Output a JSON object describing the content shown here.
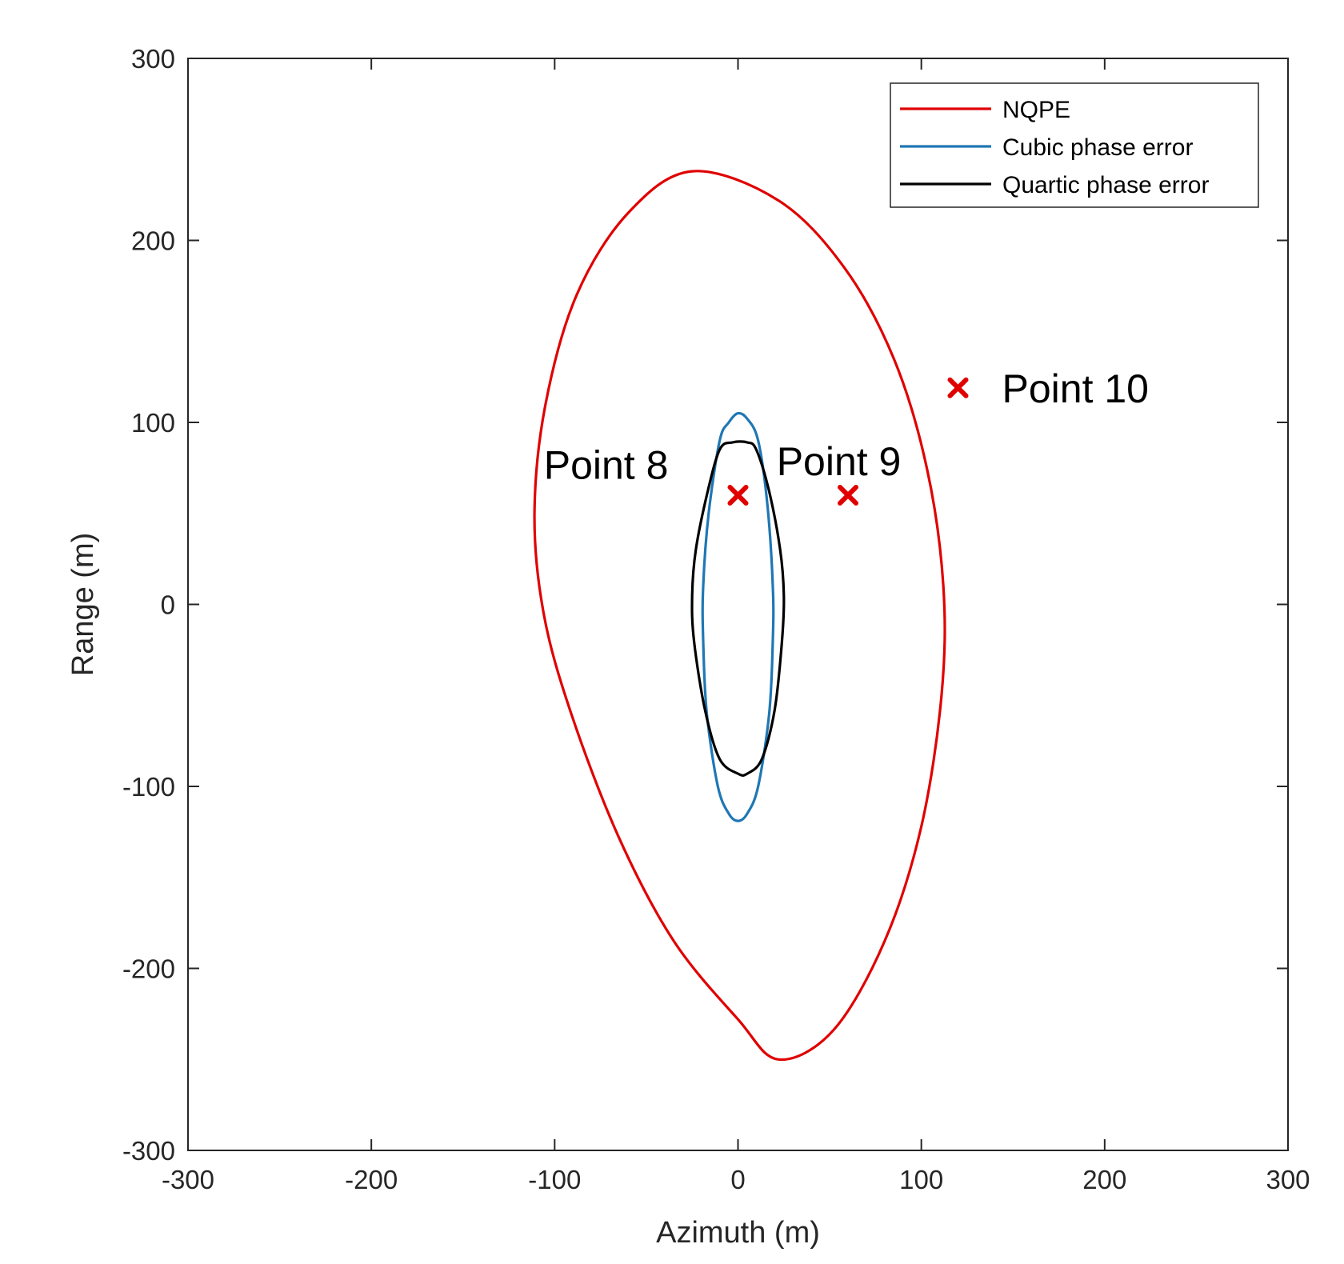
{
  "chart_data": {
    "type": "line",
    "title": "",
    "xlabel": "Azimuth (m)",
    "ylabel": "Range (m)",
    "xlim": [
      -300,
      300
    ],
    "ylim": [
      -300,
      300
    ],
    "xticks": [
      -300,
      -200,
      -100,
      0,
      100,
      200,
      300
    ],
    "yticks": [
      -300,
      -200,
      -100,
      0,
      100,
      200,
      300
    ],
    "xtick_labels": [
      "-300",
      "-200",
      "-100",
      "0",
      "100",
      "200",
      "300"
    ],
    "ytick_labels": [
      "-300",
      "-200",
      "-100",
      "0",
      "100",
      "200",
      "300"
    ],
    "grid": false,
    "legend_position": "top-right",
    "series": [
      {
        "name": "NQPE",
        "color": "#e00000",
        "x": [
          -25,
          -60,
          -88,
          -105,
          -111,
          -106,
          -91,
          -65,
          -35,
          0,
          22,
          52,
          80,
          100,
          111,
          112,
          103,
          85,
          58,
          22,
          -25
        ],
        "y": [
          238,
          215,
          170,
          110,
          50,
          -5,
          -60,
          -128,
          -185,
          -228,
          -250,
          -234,
          -185,
          -122,
          -50,
          10,
          75,
          135,
          185,
          222,
          238
        ]
      },
      {
        "name": "Cubic phase error",
        "color": "#1f77b4",
        "x": [
          0,
          5,
          11,
          16,
          19,
          19,
          17,
          11,
          5,
          0,
          -5,
          -11,
          -17,
          -19,
          -19,
          -16,
          -10,
          -5,
          0
        ],
        "y": [
          105,
          102,
          90,
          55,
          10,
          -20,
          -60,
          -100,
          -115,
          -119,
          -115,
          -100,
          -60,
          -20,
          10,
          50,
          90,
          100,
          105
        ]
      },
      {
        "name": "Quartic phase error",
        "color": "#000000",
        "x": [
          -3,
          -10,
          -17,
          -23,
          -25,
          -24,
          -18,
          -10,
          0,
          5,
          13,
          20,
          24,
          25,
          23,
          17,
          10,
          5,
          -3
        ],
        "y": [
          89,
          85,
          60,
          30,
          5,
          -20,
          -58,
          -85,
          -93,
          -93,
          -85,
          -58,
          -20,
          5,
          30,
          62,
          85,
          89,
          89
        ]
      }
    ],
    "points": [
      {
        "x": 0,
        "y": 60,
        "color": "#e00000"
      },
      {
        "x": 60,
        "y": 60,
        "color": "#e00000"
      },
      {
        "x": 120,
        "y": 119,
        "color": "#e00000"
      }
    ],
    "annotations": [
      {
        "text": "Point 8",
        "x": -38,
        "y": 77,
        "anchor": "end"
      },
      {
        "text": "Point 9",
        "x": 55,
        "y": 79,
        "anchor": "middle"
      },
      {
        "text": "Point 10",
        "x": 144,
        "y": 119,
        "anchor": "start"
      }
    ]
  }
}
